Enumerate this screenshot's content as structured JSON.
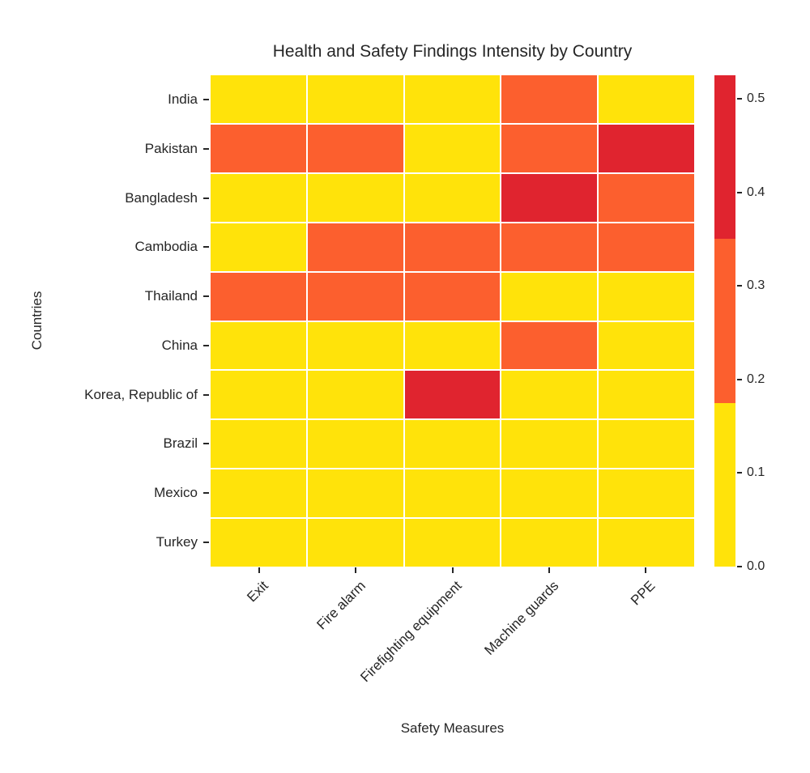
{
  "title": "Health and Safety Findings Intensity by Country",
  "xlabel": "Safety Measures",
  "ylabel": "Countries",
  "chart_data": {
    "type": "heatmap",
    "title": "Health and Safety Findings Intensity by Country",
    "xlabel": "Safety Measures",
    "ylabel": "Countries",
    "x_categories": [
      "Exit",
      "Fire alarm",
      "Firefighting equipment",
      "Machine guards",
      "PPE"
    ],
    "y_categories": [
      "India",
      "Pakistan",
      "Bangladesh",
      "Cambodia",
      "Thailand",
      "China",
      "Korea, Republic of",
      "Brazil",
      "Mexico",
      "Turkey"
    ],
    "legend_position": "right-colorbar",
    "grid": "white-gaps-between-cells",
    "level_colors": [
      "#FFE30A",
      "#FC5F2E",
      "#E0242F"
    ],
    "level_names": [
      "yellow-low",
      "orange-medium",
      "red-high"
    ],
    "level_value_ranges": [
      [
        0.0,
        0.175
      ],
      [
        0.175,
        0.35
      ],
      [
        0.35,
        0.525
      ]
    ],
    "level_value_estimates": [
      0.09,
      0.26,
      0.44
    ],
    "levels_matrix": [
      [
        0,
        0,
        0,
        1,
        0
      ],
      [
        1,
        1,
        0,
        1,
        2
      ],
      [
        0,
        0,
        0,
        2,
        1
      ],
      [
        0,
        1,
        1,
        1,
        1
      ],
      [
        1,
        1,
        1,
        0,
        0
      ],
      [
        0,
        0,
        0,
        1,
        0
      ],
      [
        0,
        0,
        2,
        0,
        0
      ],
      [
        0,
        0,
        0,
        0,
        0
      ],
      [
        0,
        0,
        0,
        0,
        0
      ],
      [
        0,
        0,
        0,
        0,
        0
      ]
    ],
    "values_estimated": [
      [
        0.09,
        0.09,
        0.09,
        0.26,
        0.09
      ],
      [
        0.26,
        0.26,
        0.09,
        0.26,
        0.44
      ],
      [
        0.09,
        0.09,
        0.09,
        0.44,
        0.26
      ],
      [
        0.09,
        0.26,
        0.26,
        0.26,
        0.26
      ],
      [
        0.26,
        0.26,
        0.26,
        0.09,
        0.09
      ],
      [
        0.09,
        0.09,
        0.09,
        0.26,
        0.09
      ],
      [
        0.09,
        0.09,
        0.44,
        0.09,
        0.09
      ],
      [
        0.09,
        0.09,
        0.09,
        0.09,
        0.09
      ],
      [
        0.09,
        0.09,
        0.09,
        0.09,
        0.09
      ],
      [
        0.09,
        0.09,
        0.09,
        0.09,
        0.09
      ]
    ],
    "colorbar": {
      "range": [
        0.0,
        0.525
      ],
      "tick_labels": [
        "0.0",
        "0.1",
        "0.2",
        "0.3",
        "0.4",
        "0.5"
      ],
      "tick_values": [
        0.0,
        0.1,
        0.2,
        0.3,
        0.4,
        0.5
      ],
      "segments_top_to_bottom": [
        "#E0242F",
        "#FC5F2E",
        "#FFE30A"
      ]
    },
    "text_color": "#262626",
    "background_color": "#ffffff"
  }
}
